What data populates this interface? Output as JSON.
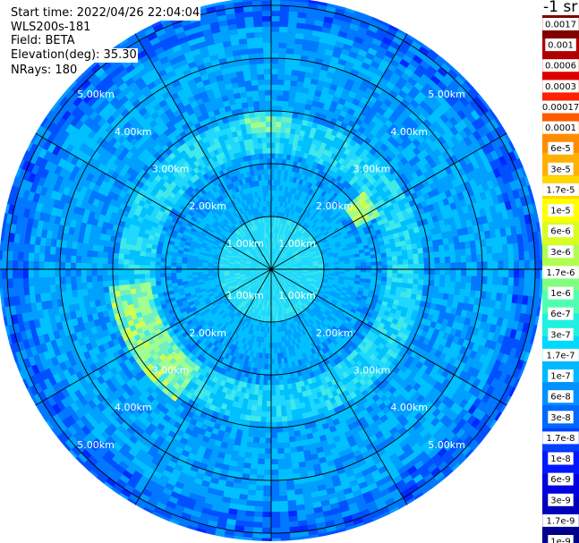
{
  "header": {
    "start_time": "Start time: 2022/04/26 22:04:04",
    "device": "WLS200s-181",
    "field": "Field: BETA",
    "elevation": "Elevation(deg): 35.30",
    "nrays": "NRays: 180"
  },
  "chart_data": {
    "type": "heatmap",
    "projection": "polar-ppi",
    "rays": 180,
    "range_rings_km": [
      1.0,
      2.0,
      3.0,
      4.0,
      5.0
    ],
    "max_range_km": 5.15,
    "ring_labels": [
      "1.00km",
      "2.00km",
      "3.00km",
      "4.00km",
      "5.00km"
    ],
    "colorbar": {
      "unit": "-1 sr",
      "ticks": [
        "0.0017",
        "0.001",
        "0.0006",
        "0.0003",
        "0.00017",
        "0.0001",
        "6e-5",
        "3e-5",
        "1.7e-5",
        "1e-5",
        "6e-6",
        "3e-6",
        "1.7e-6",
        "1e-6",
        "6e-7",
        "3e-7",
        "1.7e-7",
        "1e-7",
        "6e-8",
        "3e-8",
        "1.7e-8",
        "1e-8",
        "6e-9",
        "3e-9",
        "1.7e-9",
        "1e-9"
      ],
      "colors": [
        "#800000",
        "#b00000",
        "#dd0000",
        "#ff2000",
        "#ff5a00",
        "#ff8c00",
        "#ffb000",
        "#ffd800",
        "#ffff00",
        "#d8ff20",
        "#b0ff50",
        "#80ff80",
        "#50ffb0",
        "#20f0e0",
        "#00d8ff",
        "#00b8ff",
        "#0090ff",
        "#0068ff",
        "#0040ff",
        "#0018ff",
        "#0000e0",
        "#0000b8",
        "#00008c"
      ]
    },
    "features": [
      {
        "name": "ring-band",
        "range_km": 2.5,
        "level": "1.7e-6"
      },
      {
        "name": "arc-west",
        "range_km": 2.6,
        "level": "1.7e-5"
      },
      {
        "name": "patch-northeast",
        "range_km": 2.0,
        "level": "1e-5"
      }
    ]
  }
}
